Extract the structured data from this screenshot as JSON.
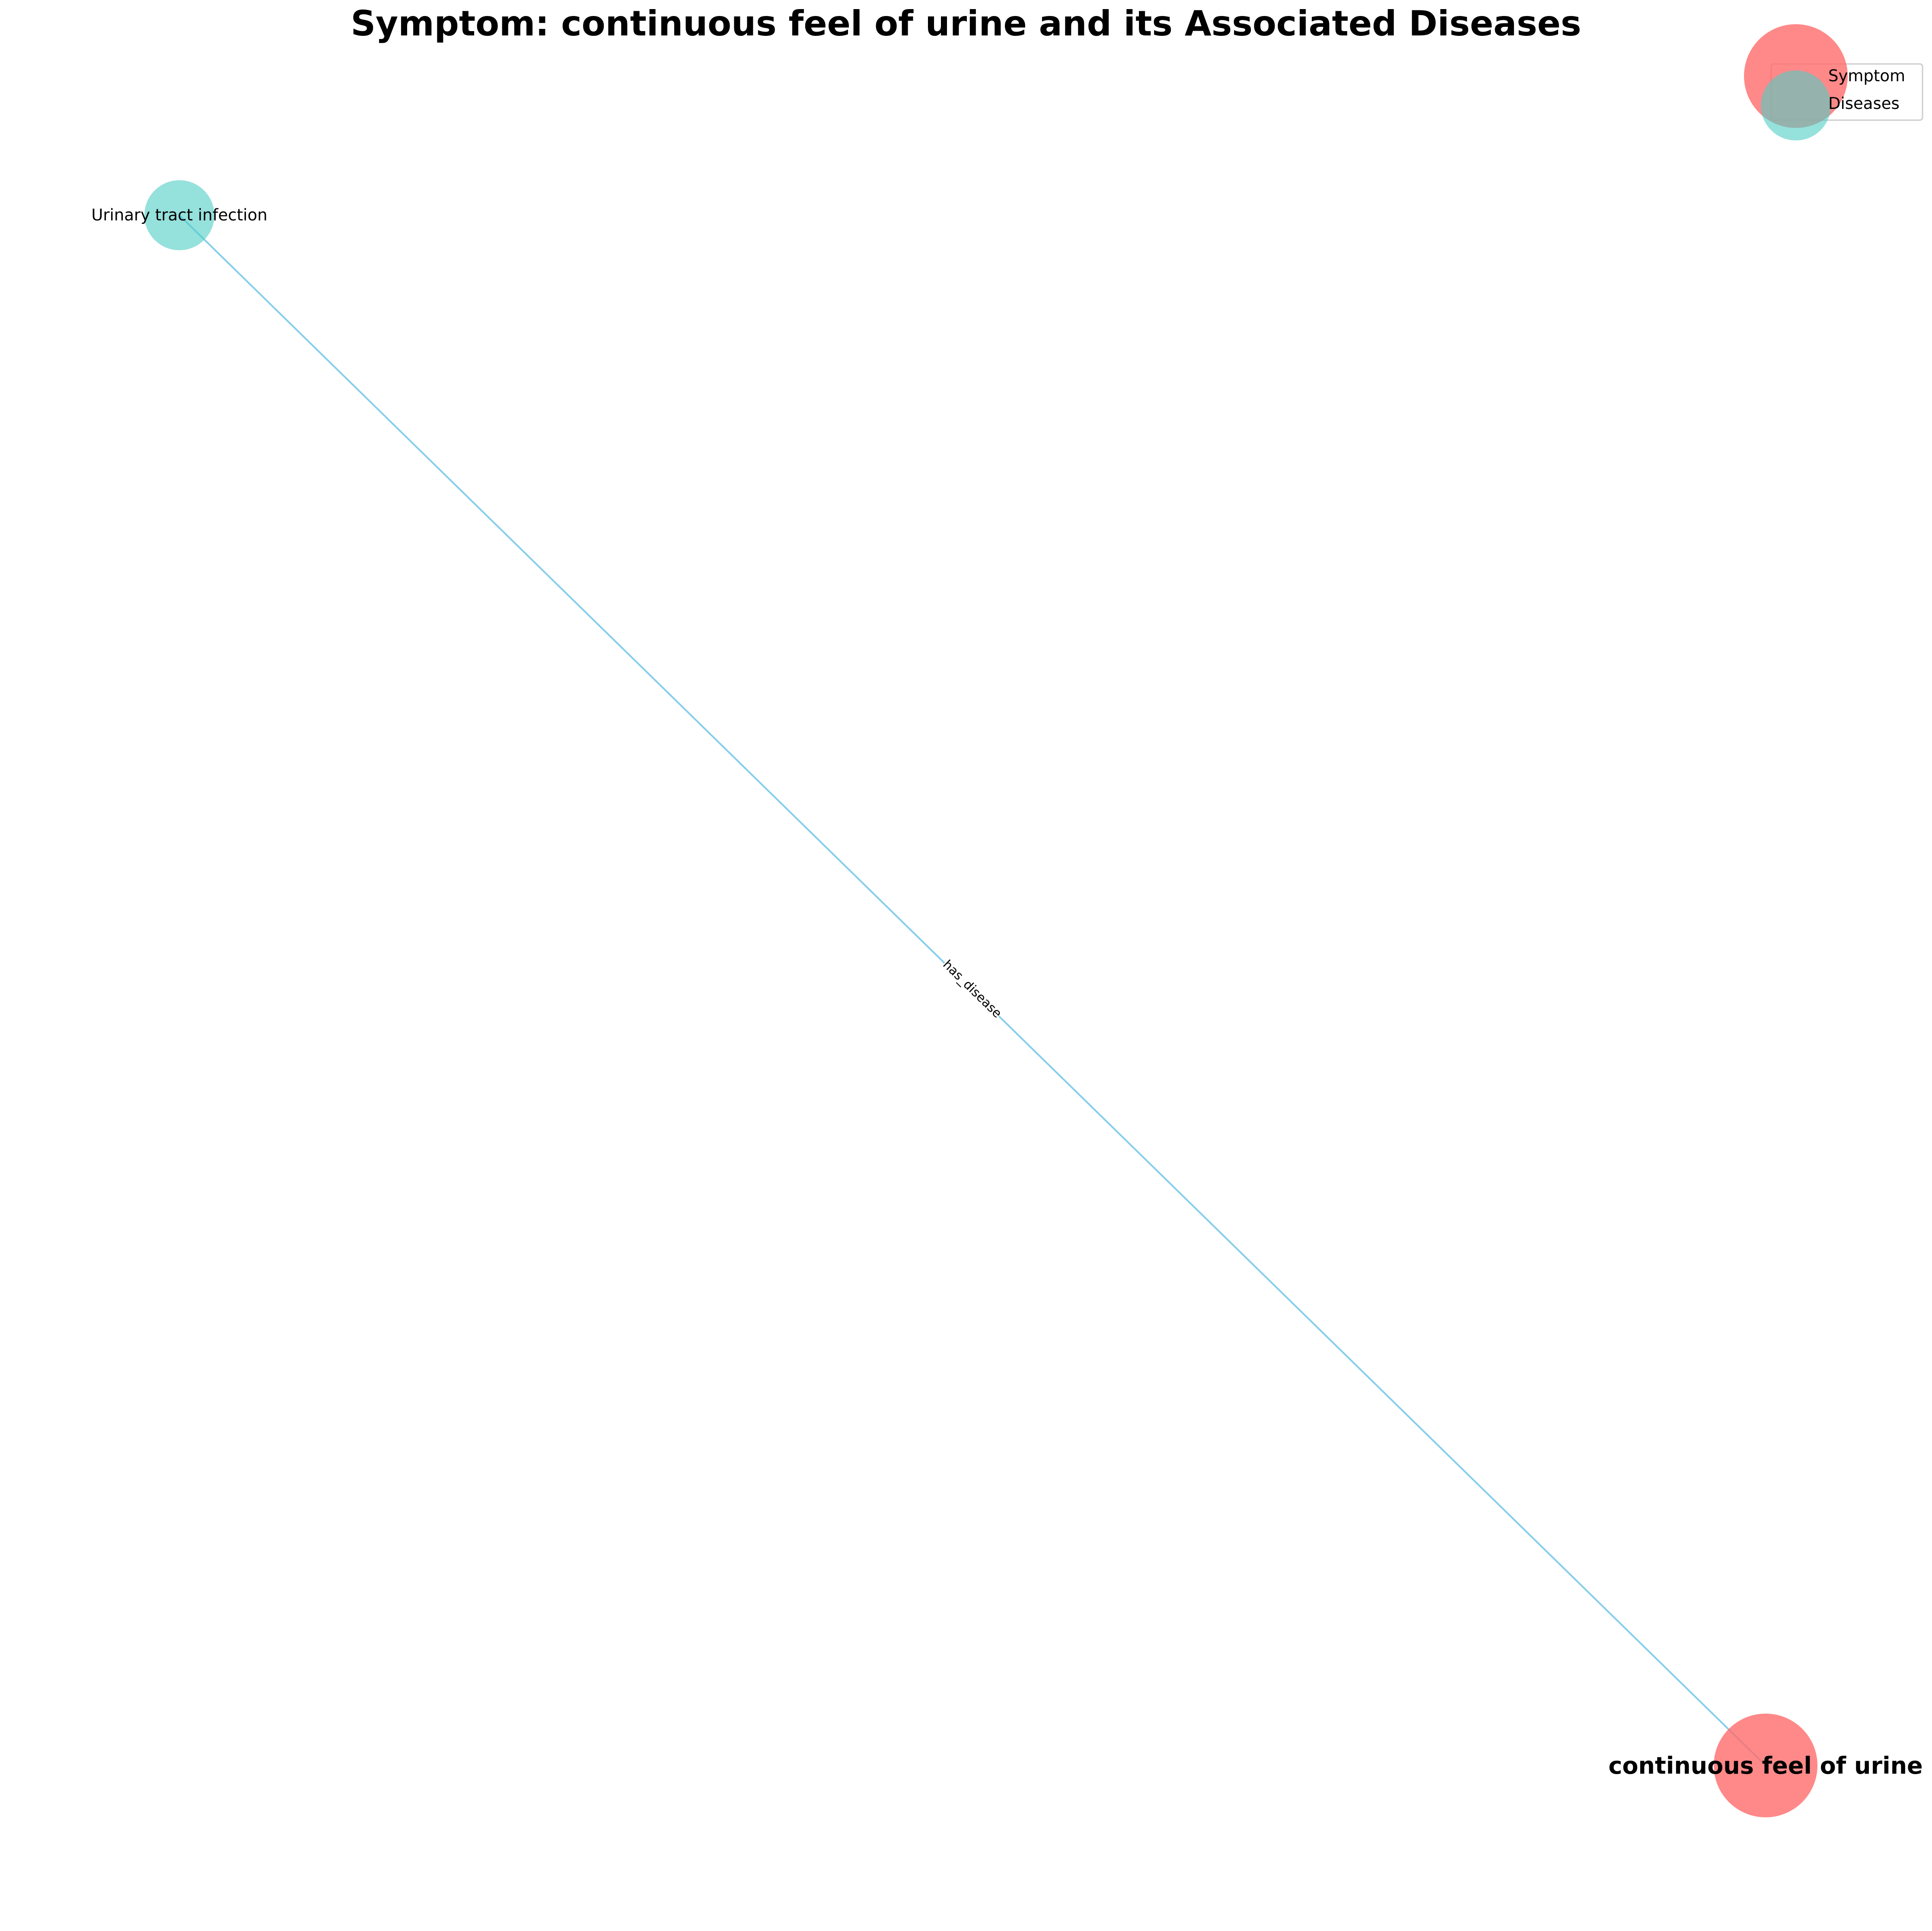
{
  "title": "Symptom: continuous feel of urine and its Associated Diseases",
  "nodes": {
    "symptom": {
      "label": "continuous feel of urine",
      "type": "Symptom",
      "color": "#ff6b6b"
    },
    "disease": {
      "label": "Urinary tract infection",
      "type": "Diseases",
      "color": "#4ecdc4"
    }
  },
  "edge": {
    "label": "has_disease",
    "color": "#87ceeb"
  },
  "legend": {
    "items": [
      {
        "label": "Symptom",
        "color": "#ff6b6b"
      },
      {
        "label": "Diseases",
        "color": "#4ecdc4"
      }
    ]
  }
}
